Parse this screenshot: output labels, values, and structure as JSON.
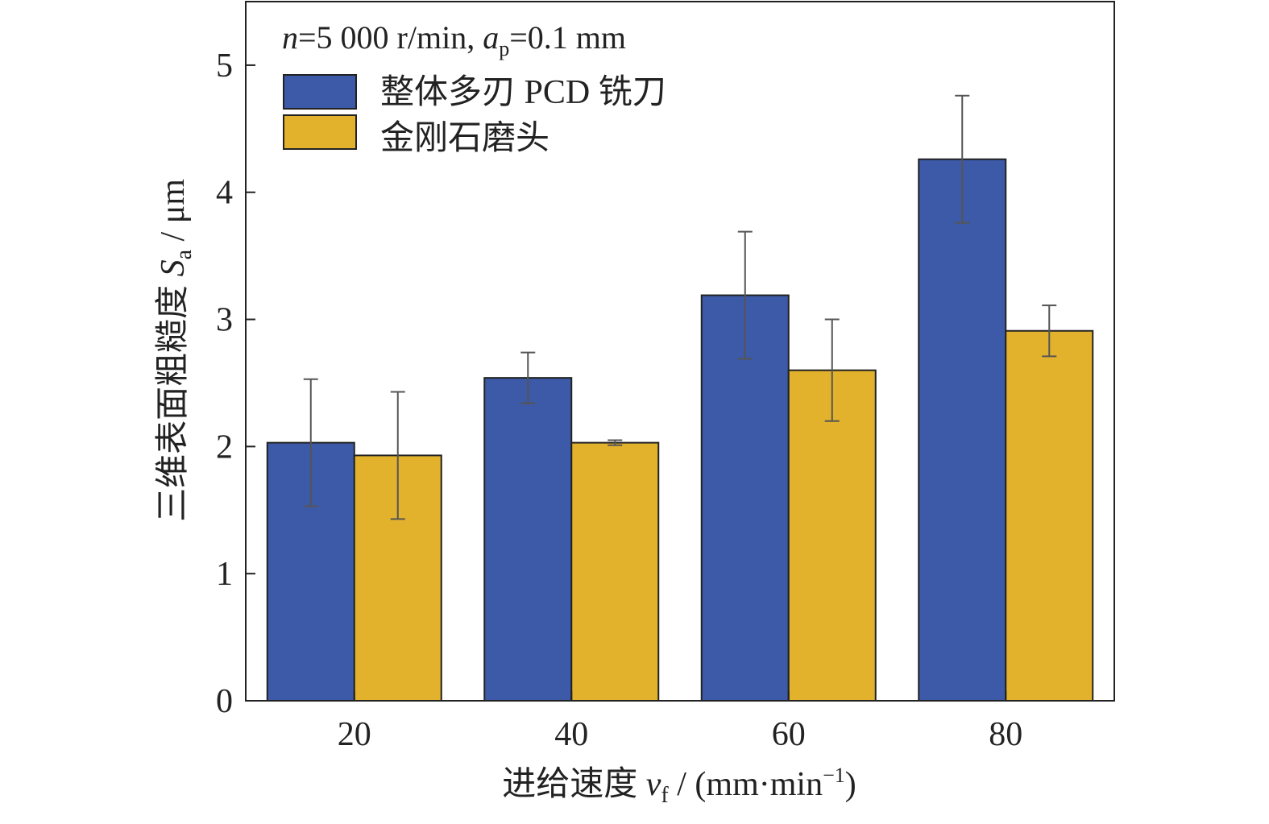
{
  "chart_data": {
    "type": "bar",
    "annotation": {
      "n_label": "n",
      "n_value": "=5 000 r/min, ",
      "ap_base": "a",
      "ap_sub": "p",
      "ap_value": "=0.1 mm"
    },
    "categories": [
      "20",
      "40",
      "60",
      "80"
    ],
    "series": [
      {
        "name": "整体多刃 PCD 铣刀",
        "color": "#3c5aa8",
        "values": [
          2.03,
          2.54,
          3.19,
          4.26
        ],
        "errors": [
          0.5,
          0.2,
          0.5,
          0.5
        ]
      },
      {
        "name": "金刚石磨头",
        "color": "#e2b22c",
        "values": [
          1.93,
          2.03,
          2.6,
          2.91
        ],
        "errors": [
          0.5,
          0.02,
          0.4,
          0.2
        ]
      }
    ],
    "xlabel": {
      "prefix": "进给速度 ",
      "var": "v",
      "sub": "f",
      "unit": " / (mm·min",
      "sup": "−1",
      "close": ")"
    },
    "ylabel": {
      "prefix": "三维表面粗糙度 ",
      "var": "S",
      "sub": "a",
      "unit": " / μm"
    },
    "ylim": [
      0,
      5.5
    ],
    "yticks": [
      "0",
      "1",
      "2",
      "3",
      "4",
      "5"
    ],
    "grid": false,
    "legend_position": "top-left"
  }
}
